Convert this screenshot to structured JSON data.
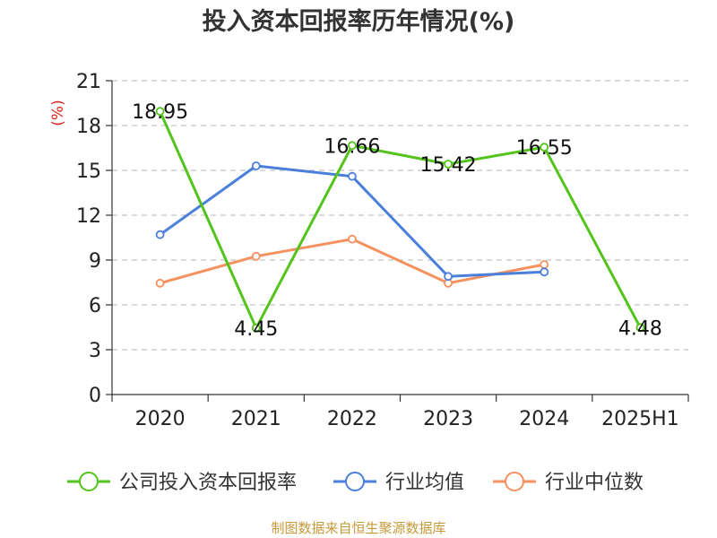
{
  "title": "投入资本回报率历年情况(%)",
  "source": "制图数据来自恒生聚源数据库",
  "colors": {
    "green": "#52c41a",
    "blue": "#4a7fdc",
    "orange": "#f5915e",
    "unit": "#d9261c",
    "source": "#c69a3b",
    "axis": "#333333",
    "grid": "#c4c4c4"
  },
  "chart_data": {
    "type": "line",
    "title": "投入资本回报率历年情况(%)",
    "ylabel": "(%)",
    "xlabel": "",
    "categories": [
      "2020",
      "2021",
      "2022",
      "2023",
      "2024",
      "2025H1"
    ],
    "ylim": [
      0,
      21
    ],
    "yticks": [
      0,
      3,
      6,
      9,
      12,
      15,
      18,
      21
    ],
    "grid": true,
    "legend_position": "bottom",
    "series": [
      {
        "name": "公司投入资本回报率",
        "color": "#52c41a",
        "values": [
          18.95,
          4.45,
          16.66,
          15.42,
          16.55,
          4.48
        ],
        "labels": [
          "18.95",
          "4.45",
          "16.66",
          "15.42",
          "16.55",
          "4.48"
        ]
      },
      {
        "name": "行业均值",
        "color": "#4a7fdc",
        "values": [
          10.7,
          15.3,
          14.6,
          7.9,
          8.2,
          null
        ]
      },
      {
        "name": "行业中位数",
        "color": "#f5915e",
        "values": [
          7.45,
          9.25,
          10.4,
          7.45,
          8.7,
          null
        ]
      }
    ]
  }
}
